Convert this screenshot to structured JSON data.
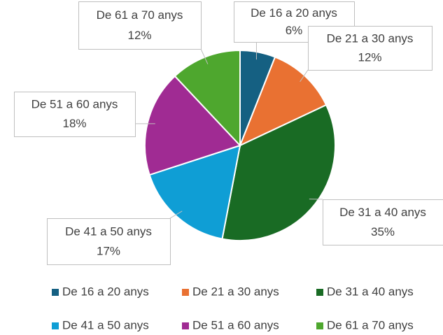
{
  "chart_data": {
    "type": "pie",
    "categories": [
      "De 16 a 20 anys",
      "De 21 a 30 anys",
      "De 31 a 40 anys",
      "De 41 a 50 anys",
      "De 51 a 60 anys",
      "De 61 a 70 anys"
    ],
    "values": [
      6,
      12,
      35,
      17,
      18,
      12
    ],
    "value_labels": [
      "6%",
      "12%",
      "35%",
      "17%",
      "18%",
      "12%"
    ],
    "colors": [
      "#156082",
      "#e97132",
      "#196b24",
      "#0f9ed5",
      "#a02b93",
      "#4ea72e"
    ],
    "legend": "bottom"
  }
}
